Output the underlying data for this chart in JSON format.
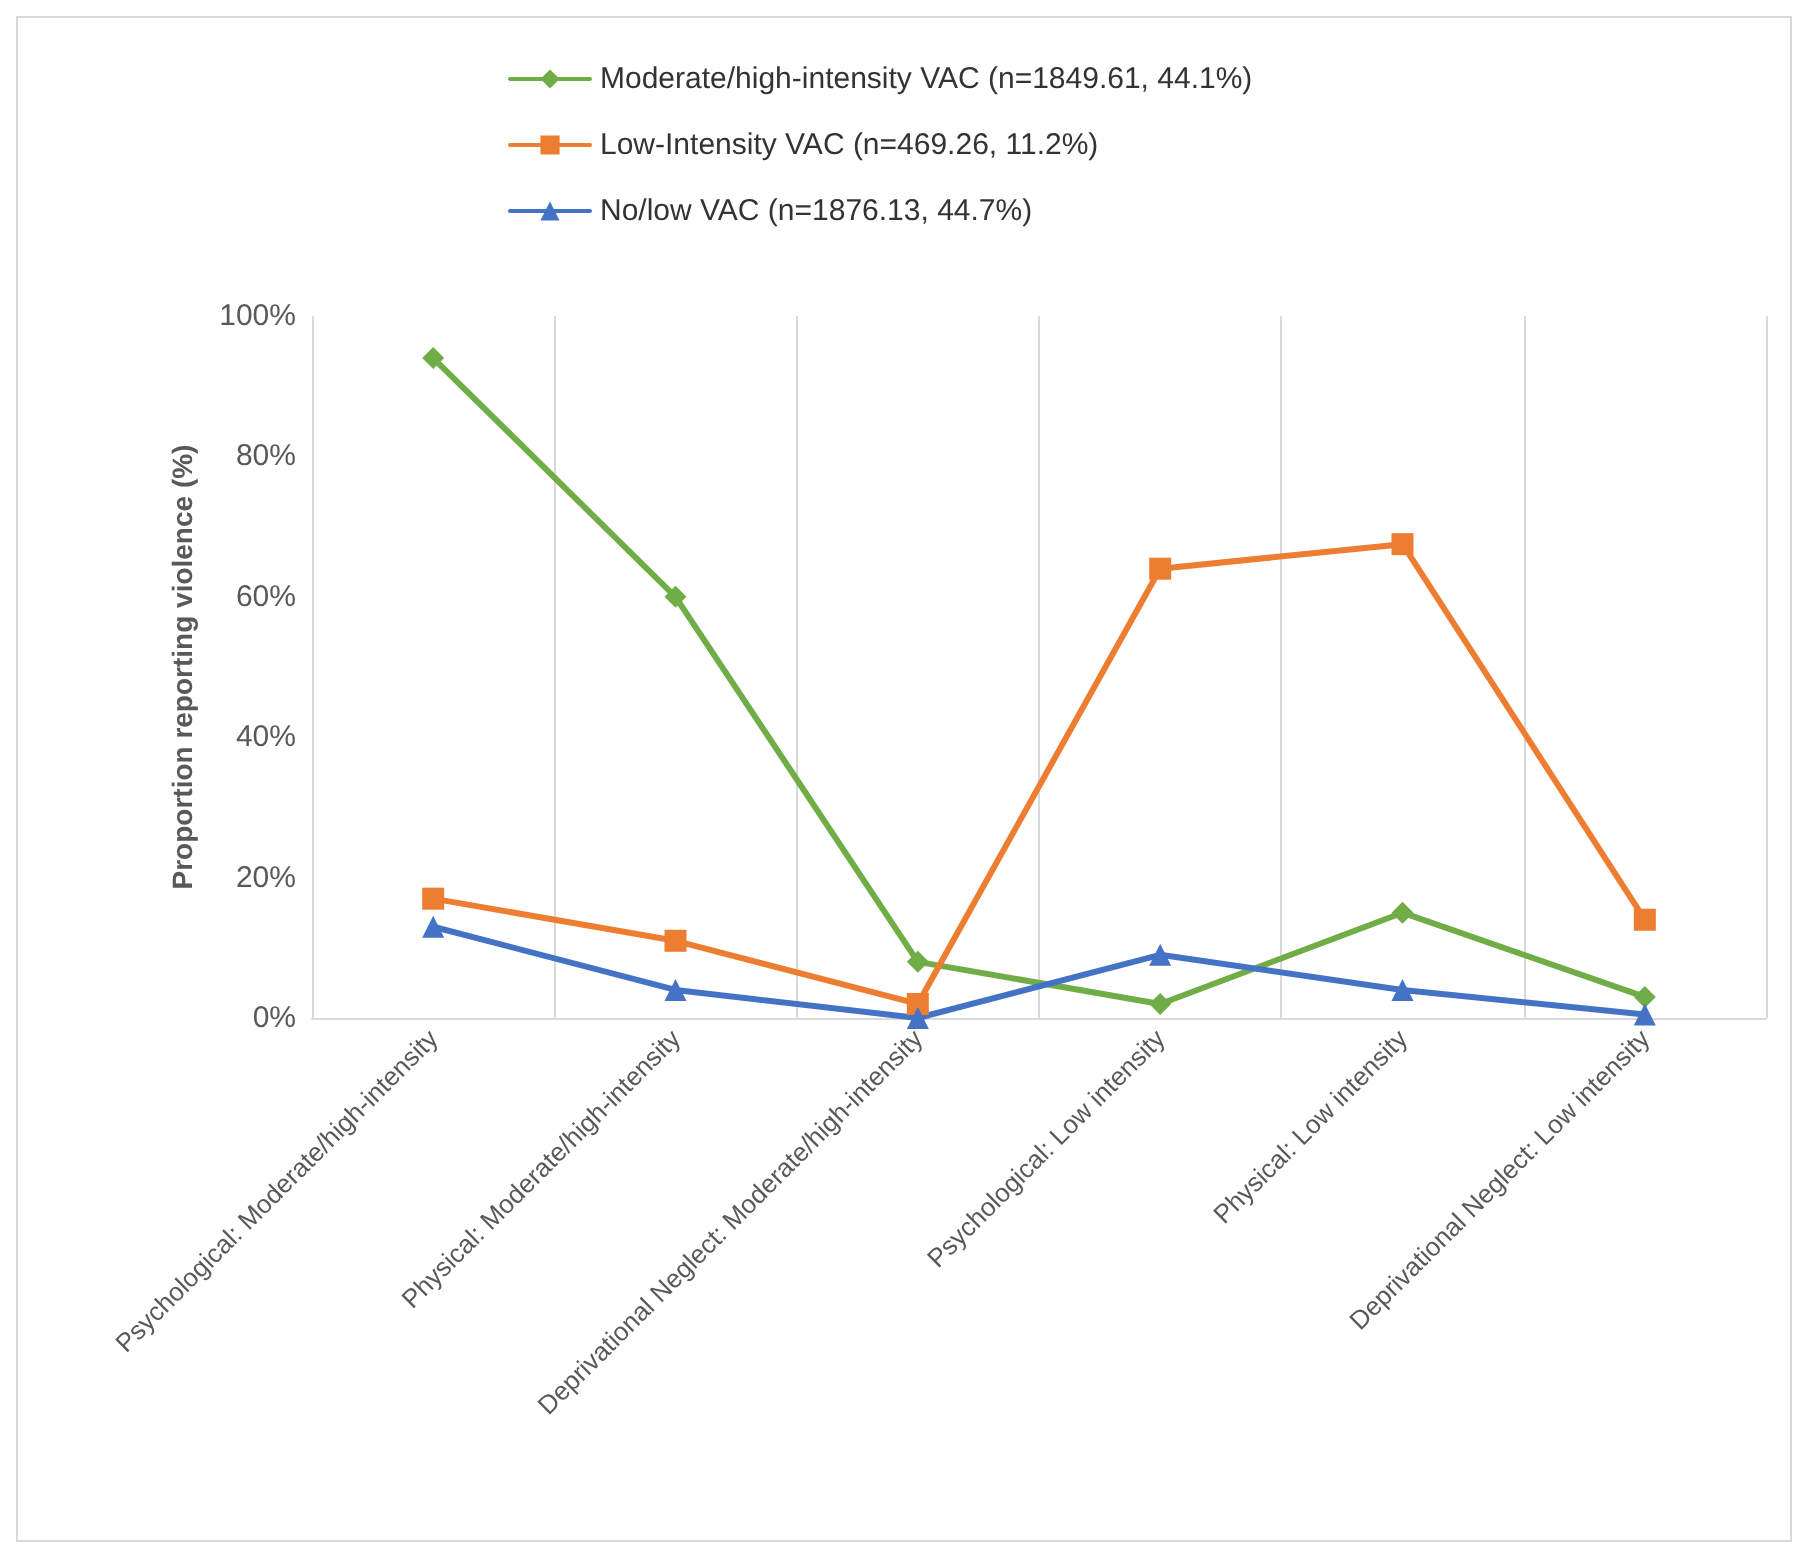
{
  "chart_data": {
    "type": "line",
    "ylabel": "Proportion reporting violence (%)",
    "categories": [
      "Psychological: Moderate/high-intensity",
      "Physical: Moderate/high-intensity",
      "Deprivational Neglect: Moderate/high-intensity",
      "Psychological: Low intensity",
      "Physical: Low intensity",
      "Deprivational Neglect: Low intensity"
    ],
    "series": [
      {
        "name": "Moderate/high-intensity VAC (n=1849.61, 44.1%)",
        "color": "#70ad47",
        "marker": "diamond",
        "values": [
          94,
          60,
          8,
          2,
          15,
          3
        ]
      },
      {
        "name": "Low-Intensity VAC (n=469.26, 11.2%)",
        "color": "#ed7d31",
        "marker": "square",
        "values": [
          17,
          11,
          2,
          64,
          67.5,
          14
        ]
      },
      {
        "name": "No/low VAC (n=1876.13, 44.7%)",
        "color": "#4472c4",
        "marker": "triangle",
        "values": [
          13,
          4,
          0,
          9,
          4,
          0.5
        ]
      }
    ],
    "ylim": [
      0,
      100
    ],
    "yticks": [
      {
        "value": 0,
        "label": "0%"
      },
      {
        "value": 20,
        "label": "20%"
      },
      {
        "value": 40,
        "label": "40%"
      },
      {
        "value": 60,
        "label": "60%"
      },
      {
        "value": 80,
        "label": "80%"
      },
      {
        "value": 100,
        "label": "100%"
      }
    ],
    "grid": "x",
    "legend": "top",
    "line_style": "solid"
  }
}
